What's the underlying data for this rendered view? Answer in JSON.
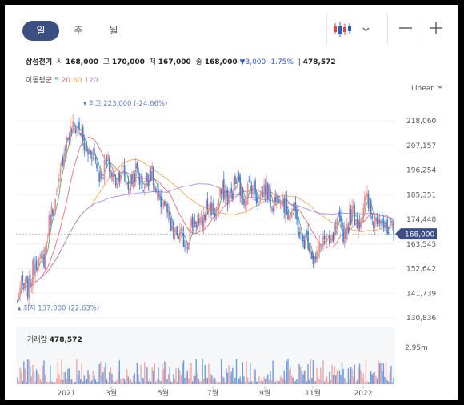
{
  "toolbar": {
    "tabs": [
      "일",
      "주",
      "월"
    ],
    "active_tab": "일",
    "zoom_out_label": "—",
    "zoom_in_label": "+",
    "candle_icon": "candlestick-icon",
    "dropdown_icon": "chevron-down-icon"
  },
  "quote": {
    "name": "삼성전기",
    "open_label": "시",
    "open": "168,000",
    "high_label": "고",
    "high": "170,000",
    "low_label": "저",
    "low": "167,000",
    "close_label": "종",
    "close": "168,000",
    "change": "▼3,000 -1.75%",
    "volume": "478,572"
  },
  "moving_average": {
    "label": "이동평균",
    "periods": [
      {
        "text": "5",
        "color": "#3fa66b"
      },
      {
        "text": "20",
        "color": "#e06464"
      },
      {
        "text": "60",
        "color": "#f0a050"
      },
      {
        "text": "120",
        "color": "#a57ee8"
      }
    ]
  },
  "scale_button": "Linear",
  "colors": {
    "up": "#f08a8a",
    "down": "#3d80d6",
    "active_tab": "#3b4f82",
    "price_tag": "#3b4f82",
    "annotation": "#5f7fc4"
  },
  "chart_data": {
    "type": "candlestick",
    "y_ticks": [
      {
        "label": "218,060",
        "value": 218060
      },
      {
        "label": "207,157",
        "value": 207157
      },
      {
        "label": "196,254",
        "value": 196254
      },
      {
        "label": "185,351",
        "value": 185351
      },
      {
        "label": "174,448",
        "value": 174448
      },
      {
        "label": "163,545",
        "value": 163545
      },
      {
        "label": "152,642",
        "value": 152642
      },
      {
        "label": "141,739",
        "value": 141739
      },
      {
        "label": "130,836",
        "value": 130836
      }
    ],
    "x_ticks": [
      "2021",
      "3월",
      "5월",
      "7월",
      "9월",
      "11월",
      "2022"
    ],
    "current_price": {
      "label": "168,000",
      "value": 168000
    },
    "high_annotation": {
      "label": "최고 223,000 (-24.66%)",
      "value": 223000,
      "date": "2021-01"
    },
    "low_annotation": {
      "label": "최저 137,000 (22.63%)",
      "value": 137000,
      "date": "2020-11"
    },
    "price_path": [
      {
        "date": "2020-11",
        "close": 139000
      },
      {
        "date": "2020-12",
        "close": 160000
      },
      {
        "date": "2021-01",
        "close": 218000
      },
      {
        "date": "2021-02",
        "close": 198000
      },
      {
        "date": "2021-03",
        "close": 193000
      },
      {
        "date": "2021-04",
        "close": 192000
      },
      {
        "date": "2021-05",
        "close": 164000
      },
      {
        "date": "2021-06",
        "close": 177000
      },
      {
        "date": "2021-07",
        "close": 188000
      },
      {
        "date": "2021-08",
        "close": 187000
      },
      {
        "date": "2021-09",
        "close": 182000
      },
      {
        "date": "2021-10",
        "close": 158000
      },
      {
        "date": "2021-11",
        "close": 170000
      },
      {
        "date": "2021-12",
        "close": 180000
      },
      {
        "date": "2022-01",
        "close": 168000
      }
    ],
    "volume": {
      "title": "거래량",
      "last": "478,572",
      "y_tick": "2.95m"
    }
  }
}
